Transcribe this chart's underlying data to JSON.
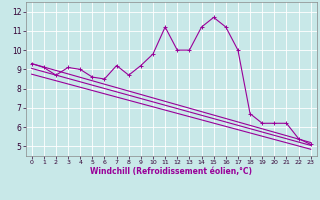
{
  "xlabel": "Windchill (Refroidissement éolien,°C)",
  "background_color": "#c8e8e8",
  "line_color": "#990099",
  "xlim": [
    -0.5,
    23.5
  ],
  "ylim": [
    4.5,
    12.5
  ],
  "yticks": [
    5,
    6,
    7,
    8,
    9,
    10,
    11,
    12
  ],
  "xticks": [
    0,
    1,
    2,
    3,
    4,
    5,
    6,
    7,
    8,
    9,
    10,
    11,
    12,
    13,
    14,
    15,
    16,
    17,
    18,
    19,
    20,
    21,
    22,
    23
  ],
  "series1_x": [
    0,
    1,
    2,
    3,
    4,
    5,
    6,
    7,
    8,
    9,
    10,
    11,
    12,
    13,
    14,
    15,
    16,
    17,
    18,
    19,
    20,
    21,
    22,
    23
  ],
  "series1_y": [
    9.3,
    9.1,
    8.7,
    9.1,
    9.0,
    8.6,
    8.5,
    9.2,
    8.7,
    9.2,
    9.8,
    11.2,
    10.0,
    10.0,
    11.2,
    11.7,
    11.2,
    10.0,
    6.7,
    6.2,
    6.2,
    6.2,
    5.4,
    5.1
  ],
  "regression_lines": [
    {
      "x0": 0,
      "y0": 9.3,
      "x1": 23,
      "y1": 5.2
    },
    {
      "x0": 0,
      "y0": 9.05,
      "x1": 23,
      "y1": 5.05
    },
    {
      "x0": 0,
      "y0": 8.75,
      "x1": 23,
      "y1": 4.85
    }
  ],
  "xlabel_fontsize": 5.5,
  "tick_fontsize_x": 4.5,
  "tick_fontsize_y": 5.5,
  "line_width": 0.8,
  "marker_size": 2.5
}
